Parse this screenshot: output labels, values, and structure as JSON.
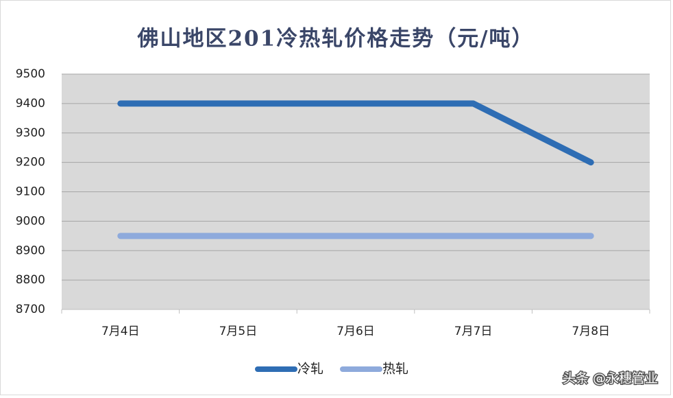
{
  "chart_data": {
    "type": "line",
    "title": "佛山地区201冷热轧价格走势（元/吨）",
    "categories": [
      "7月4日",
      "7月5日",
      "7月6日",
      "7月7日",
      "7月8日"
    ],
    "series": [
      {
        "name": "冷轧",
        "color": "#2e6db4",
        "values": [
          9400,
          9400,
          9400,
          9400,
          9200
        ]
      },
      {
        "name": "热轧",
        "color": "#8eaadc",
        "values": [
          8950,
          8950,
          8950,
          8950,
          8950
        ]
      }
    ],
    "ylim": [
      8700,
      9500
    ],
    "yticks": [
      8700,
      8800,
      8900,
      9000,
      9100,
      9200,
      9300,
      9400,
      9500
    ],
    "grid": true,
    "plot_background": "#d9d9d9",
    "legend": "bottom",
    "watermark": "头条 @永穗管业"
  }
}
